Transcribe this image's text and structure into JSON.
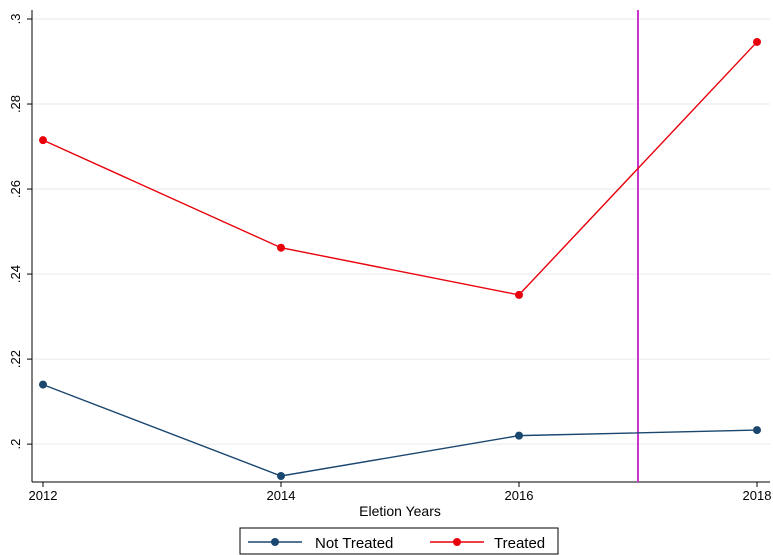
{
  "chart_data": {
    "type": "line",
    "title": "",
    "xlabel": "Eletion Years",
    "ylabel": "",
    "x": [
      2012,
      2014,
      2016,
      2018
    ],
    "xticks": [
      "2012",
      "2014",
      "2016",
      "2018"
    ],
    "yticks": [
      ".2",
      ".22",
      ".24",
      ".26",
      ".28",
      ".3"
    ],
    "xlim": [
      2012,
      2018
    ],
    "ylim": [
      0.1925,
      0.3
    ],
    "grid": true,
    "reference_line": {
      "x": 2017,
      "color": "#cc33cc"
    },
    "legend_position": "bottom",
    "series": [
      {
        "name": "Not Treated",
        "color": "#1a476f",
        "values": [
          0.214,
          0.1925,
          0.202,
          0.2033
        ]
      },
      {
        "name": "Treated",
        "color": "#e8000b",
        "values": [
          0.2715,
          0.2462,
          0.2351,
          0.2946
        ]
      }
    ]
  }
}
